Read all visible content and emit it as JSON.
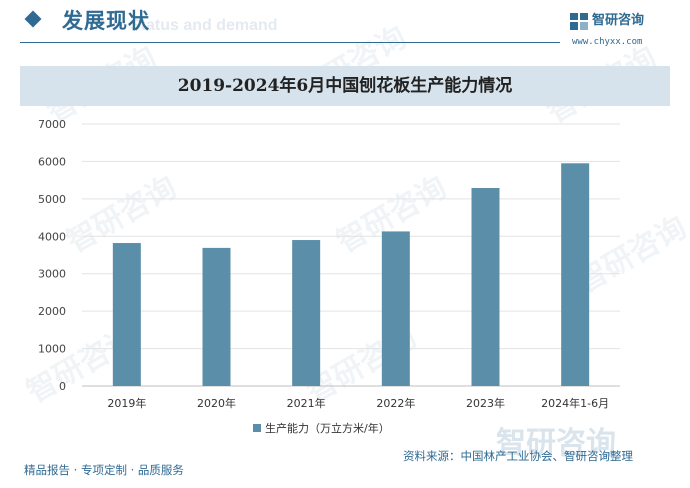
{
  "header": {
    "section_title": "发展现状",
    "section_subtitle": "Status and demand",
    "brand_name": "智研咨询",
    "brand_url": "www.chyxx.com"
  },
  "watermark": {
    "text": "智研咨询"
  },
  "colors": {
    "accent": "#2f6a93",
    "bar": "#5b8fa9",
    "band": "#d6e2ec"
  },
  "chart_data": {
    "type": "bar",
    "title": "2019-2024年6月中国刨花板生产能力情况",
    "categories": [
      "2019年",
      "2020年",
      "2021年",
      "2022年",
      "2023年",
      "2024年1-6月"
    ],
    "series": [
      {
        "name": "生产能力（万立方米/年）",
        "values": [
          3820,
          3690,
          3900,
          4130,
          5290,
          5950
        ]
      }
    ],
    "ylim": [
      0,
      7000
    ],
    "yticks": [
      "0",
      "1000",
      "2000",
      "3000",
      "4000",
      "5000",
      "6000",
      "7000"
    ],
    "grid": true,
    "legend": "bottom",
    "xlabel": "",
    "ylabel": ""
  },
  "footer": {
    "left": "精品报告 · 专项定制 · 品质服务",
    "source": "资料来源：中国林产工业协会、智研咨询整理"
  }
}
